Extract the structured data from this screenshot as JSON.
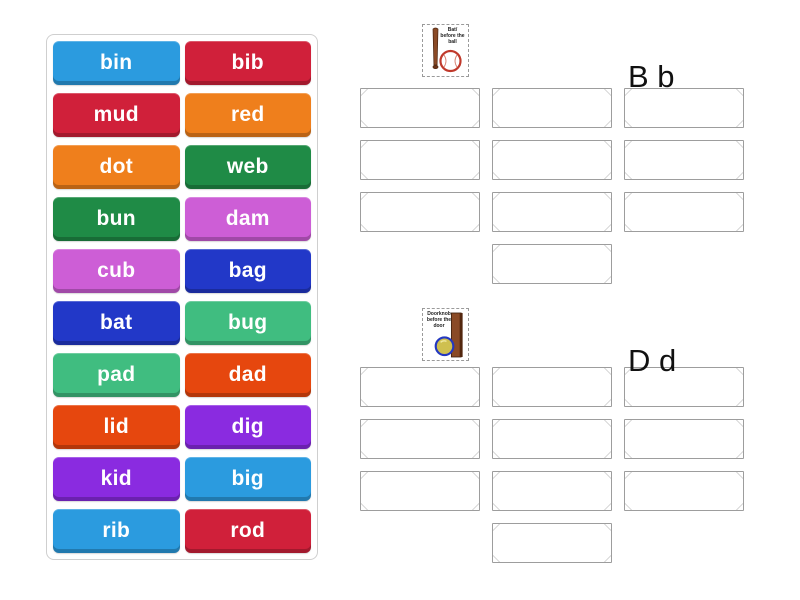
{
  "activity": {
    "kind": "group-sort"
  },
  "words": [
    {
      "label": "bin",
      "color": "#2B9BDF"
    },
    {
      "label": "bib",
      "color": "#D0203A"
    },
    {
      "label": "mud",
      "color": "#D0203A"
    },
    {
      "label": "red",
      "color": "#EF7F1C"
    },
    {
      "label": "dot",
      "color": "#EF7F1C"
    },
    {
      "label": "web",
      "color": "#1F8B46"
    },
    {
      "label": "bun",
      "color": "#1F8B46"
    },
    {
      "label": "dam",
      "color": "#CD5ED6"
    },
    {
      "label": "cub",
      "color": "#CD5ED6"
    },
    {
      "label": "bag",
      "color": "#2238C8"
    },
    {
      "label": "bat",
      "color": "#2238C8"
    },
    {
      "label": "bug",
      "color": "#40BD80"
    },
    {
      "label": "pad",
      "color": "#40BD80"
    },
    {
      "label": "dad",
      "color": "#E6470E"
    },
    {
      "label": "lid",
      "color": "#E6470E"
    },
    {
      "label": "dig",
      "color": "#8A2BE0"
    },
    {
      "label": "kid",
      "color": "#8A2BE0"
    },
    {
      "label": "big",
      "color": "#2B9BDF"
    },
    {
      "label": "rib",
      "color": "#2B9BDF"
    },
    {
      "label": "rod",
      "color": "#D0203A"
    }
  ],
  "groups": [
    {
      "label": "B b",
      "slot_count": 10,
      "image": {
        "name": "bat-before-the-ball",
        "caption_lines": [
          "Bat/",
          "before the",
          "ball"
        ],
        "bat_color": "#8A4A26",
        "ball_outline_color": "#C0392B"
      }
    },
    {
      "label": "D d",
      "slot_count": 10,
      "image": {
        "name": "doorknob-before-the-door",
        "caption_lines": [
          "Doorknob",
          "before the",
          "door"
        ],
        "door_color": "#8A4A26",
        "knob_color": "#CFC04F",
        "knob_outline_color": "#2438C0"
      }
    }
  ]
}
